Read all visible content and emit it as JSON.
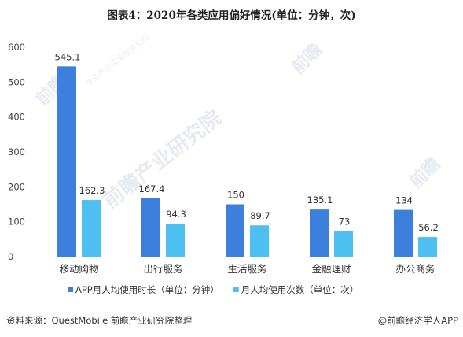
{
  "chart_data": {
    "type": "bar",
    "title": "图表4：2020年各类应用偏好情况(单位：分钟，次)",
    "categories": [
      "移动购物",
      "出行服务",
      "生活服务",
      "金融理财",
      "办公商务"
    ],
    "series": [
      {
        "name": "APP月人均使用时长（单位：分钟）",
        "values": [
          545.1,
          167.4,
          150,
          135.1,
          134
        ],
        "labels": [
          "545.1",
          "167.4",
          "150",
          "135.1",
          "134"
        ],
        "color": "#3d7fdc"
      },
      {
        "name": "月人均使用次数（单位：次）",
        "values": [
          162.3,
          94.3,
          89.7,
          73,
          56.2
        ],
        "labels": [
          "162.3",
          "94.3",
          "89.7",
          "73",
          "56.2"
        ],
        "color": "#4dbff0"
      }
    ],
    "yticks": [
      "0",
      "100",
      "200",
      "300",
      "400",
      "500",
      "600"
    ],
    "ylim": [
      0,
      600
    ],
    "grid": false,
    "legend_position": "bottom-left"
  },
  "footer": {
    "source": "资料来源：QuestMobile 前瞻产业研究院整理",
    "credit": "@前瞻经济学人APP"
  },
  "watermark": {
    "text": "前瞻产业研究院",
    "short": "前瞻",
    "sub": "专业产业咨询服务机构"
  },
  "colors": {
    "axis": "#999999"
  }
}
